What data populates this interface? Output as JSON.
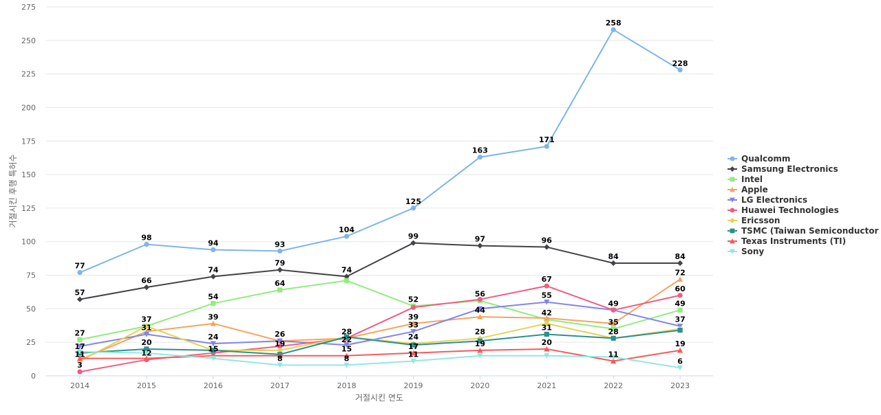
{
  "chart_data": {
    "type": "line",
    "title": "",
    "xlabel": "거절시킨 연도",
    "ylabel": "거절시킨 후행 특허수",
    "x": [
      2014,
      2015,
      2016,
      2017,
      2018,
      2019,
      2020,
      2021,
      2022,
      2023
    ],
    "ylim": [
      0,
      275
    ],
    "yticks": [
      0,
      25,
      50,
      75,
      100,
      125,
      150,
      175,
      200,
      225,
      250,
      275
    ],
    "grid": true,
    "legend_position": "right",
    "series": [
      {
        "name": "Qualcomm",
        "color": "#7cb5ec",
        "marker": "circle",
        "values": [
          77,
          98,
          94,
          93,
          104,
          125,
          163,
          171,
          258,
          228
        ]
      },
      {
        "name": "Samsung Electronics",
        "color": "#434348",
        "marker": "diamond",
        "values": [
          57,
          66,
          74,
          79,
          74,
          99,
          97,
          96,
          84,
          84
        ]
      },
      {
        "name": "Intel",
        "color": "#90ed7d",
        "marker": "square",
        "values": [
          27,
          37,
          54,
          64,
          71,
          52,
          56,
          42,
          35,
          49
        ]
      },
      {
        "name": "Apple",
        "color": "#f7a35c",
        "marker": "triangle",
        "values": [
          12,
          33,
          39,
          26,
          28,
          39,
          44,
          43,
          39,
          72
        ]
      },
      {
        "name": "LG Electronics",
        "color": "#8085e9",
        "marker": "triangle-down",
        "values": [
          22,
          31,
          24,
          26,
          23,
          33,
          50,
          55,
          49,
          37
        ]
      },
      {
        "name": "Huawei Technologies",
        "color": "#f15c80",
        "marker": "circle",
        "values": [
          3,
          12,
          17,
          22,
          28,
          51,
          57,
          67,
          49,
          60
        ]
      },
      {
        "name": "Ericsson",
        "color": "#e4d354",
        "marker": "diamond",
        "values": [
          11,
          37,
          19,
          19,
          29,
          24,
          28,
          39,
          28,
          35
        ]
      },
      {
        "name": "TSMC (Taiwan Semiconductor ...",
        "color": "#2b908f",
        "marker": "square",
        "values": [
          17,
          20,
          19,
          16,
          29,
          23,
          26,
          31,
          28,
          34
        ]
      },
      {
        "name": "Texas Instruments (TI)",
        "color": "#f45b5b",
        "marker": "triangle",
        "values": [
          13,
          13,
          15,
          15,
          15,
          17,
          19,
          20,
          11,
          19
        ]
      },
      {
        "name": "Sony",
        "color": "#91e8e1",
        "marker": "triangle-down",
        "values": [
          18,
          17,
          13,
          8,
          8,
          11,
          15,
          15,
          14,
          6
        ]
      }
    ],
    "data_labels": [
      {
        "x": 2014,
        "y": 77,
        "text": "77"
      },
      {
        "x": 2015,
        "y": 98,
        "text": "98"
      },
      {
        "x": 2016,
        "y": 94,
        "text": "94"
      },
      {
        "x": 2017,
        "y": 93,
        "text": "93"
      },
      {
        "x": 2018,
        "y": 104,
        "text": "104"
      },
      {
        "x": 2019,
        "y": 125,
        "text": "125"
      },
      {
        "x": 2020,
        "y": 163,
        "text": "163"
      },
      {
        "x": 2021,
        "y": 171,
        "text": "171"
      },
      {
        "x": 2022,
        "y": 258,
        "text": "258"
      },
      {
        "x": 2023,
        "y": 228,
        "text": "228"
      },
      {
        "x": 2014,
        "y": 57,
        "text": "57"
      },
      {
        "x": 2015,
        "y": 66,
        "text": "66"
      },
      {
        "x": 2016,
        "y": 74,
        "text": "74"
      },
      {
        "x": 2017,
        "y": 79,
        "text": "79"
      },
      {
        "x": 2018,
        "y": 74,
        "text": "74"
      },
      {
        "x": 2019,
        "y": 99,
        "text": "99"
      },
      {
        "x": 2020,
        "y": 97,
        "text": "97"
      },
      {
        "x": 2021,
        "y": 96,
        "text": "96"
      },
      {
        "x": 2022,
        "y": 84,
        "text": "84"
      },
      {
        "x": 2023,
        "y": 84,
        "text": "84"
      },
      {
        "x": 2014,
        "y": 27,
        "text": "27"
      },
      {
        "x": 2015,
        "y": 37,
        "text": "37"
      },
      {
        "x": 2016,
        "y": 54,
        "text": "54"
      },
      {
        "x": 2017,
        "y": 64,
        "text": "64"
      },
      {
        "x": 2019,
        "y": 52,
        "text": "52"
      },
      {
        "x": 2020,
        "y": 56,
        "text": "56"
      },
      {
        "x": 2021,
        "y": 67,
        "text": "67"
      },
      {
        "x": 2022,
        "y": 49,
        "text": "49"
      },
      {
        "x": 2023,
        "y": 72,
        "text": "72"
      },
      {
        "x": 2023,
        "y": 60,
        "text": "60"
      },
      {
        "x": 2023,
        "y": 49,
        "text": "49"
      },
      {
        "x": 2023,
        "y": 37,
        "text": "37"
      },
      {
        "x": 2014,
        "y": 17,
        "text": "17"
      },
      {
        "x": 2014,
        "y": 11,
        "text": "11"
      },
      {
        "x": 2014,
        "y": 3,
        "text": "3"
      },
      {
        "x": 2015,
        "y": 31,
        "text": "31"
      },
      {
        "x": 2015,
        "y": 20,
        "text": "20"
      },
      {
        "x": 2015,
        "y": 12,
        "text": "12"
      },
      {
        "x": 2016,
        "y": 39,
        "text": "39"
      },
      {
        "x": 2016,
        "y": 24,
        "text": "24"
      },
      {
        "x": 2016,
        "y": 15,
        "text": "15"
      },
      {
        "x": 2017,
        "y": 26,
        "text": "26"
      },
      {
        "x": 2017,
        "y": 19,
        "text": "19"
      },
      {
        "x": 2017,
        "y": 8,
        "text": "8"
      },
      {
        "x": 2018,
        "y": 28,
        "text": "28"
      },
      {
        "x": 2018,
        "y": 22,
        "text": "22"
      },
      {
        "x": 2018,
        "y": 15,
        "text": "15"
      },
      {
        "x": 2018,
        "y": 8,
        "text": "8"
      },
      {
        "x": 2019,
        "y": 39,
        "text": "39"
      },
      {
        "x": 2019,
        "y": 33,
        "text": "33"
      },
      {
        "x": 2019,
        "y": 24,
        "text": "24"
      },
      {
        "x": 2019,
        "y": 17,
        "text": "17"
      },
      {
        "x": 2019,
        "y": 11,
        "text": "11"
      },
      {
        "x": 2020,
        "y": 44,
        "text": "44"
      },
      {
        "x": 2020,
        "y": 28,
        "text": "28"
      },
      {
        "x": 2020,
        "y": 19,
        "text": "19"
      },
      {
        "x": 2021,
        "y": 55,
        "text": "55"
      },
      {
        "x": 2021,
        "y": 42,
        "text": "42"
      },
      {
        "x": 2021,
        "y": 31,
        "text": "31"
      },
      {
        "x": 2021,
        "y": 20,
        "text": "20"
      },
      {
        "x": 2022,
        "y": 35,
        "text": "35"
      },
      {
        "x": 2022,
        "y": 28,
        "text": "28"
      },
      {
        "x": 2022,
        "y": 11,
        "text": "11"
      },
      {
        "x": 2023,
        "y": 19,
        "text": "19"
      },
      {
        "x": 2023,
        "y": 6,
        "text": "6"
      }
    ]
  }
}
